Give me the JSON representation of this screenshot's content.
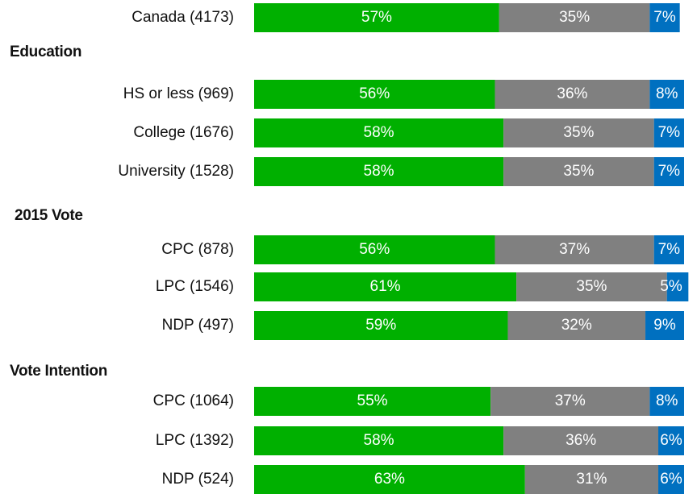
{
  "chart_data": {
    "type": "bar",
    "orientation": "horizontal",
    "stacked": true,
    "colors": [
      "#00b000",
      "#808080",
      "#0070c0"
    ],
    "xlim": [
      0,
      100
    ],
    "groups": [
      {
        "categories": [
          "Canada (4173)"
        ],
        "series": [
          {
            "values": [
              57
            ],
            "value_labels": [
              "57%"
            ]
          },
          {
            "values": [
              35
            ],
            "value_labels": [
              "35%"
            ]
          },
          {
            "values": [
              7
            ],
            "value_labels": [
              "7%"
            ]
          }
        ]
      },
      {
        "title": "Education",
        "categories": [
          "HS or less (969)",
          "College (1676)",
          "University (1528)"
        ],
        "series": [
          {
            "values": [
              56,
              58,
              58
            ],
            "value_labels": [
              "56%",
              "58%",
              "58%"
            ]
          },
          {
            "values": [
              36,
              35,
              35
            ],
            "value_labels": [
              "36%",
              "35%",
              "35%"
            ]
          },
          {
            "values": [
              8,
              7,
              7
            ],
            "value_labels": [
              "8%",
              "7%",
              "7%"
            ]
          }
        ]
      },
      {
        "title": "2015 Vote",
        "categories": [
          "CPC (878)",
          "LPC (1546)",
          "NDP (497)"
        ],
        "series": [
          {
            "values": [
              56,
              61,
              59
            ],
            "value_labels": [
              "56%",
              "61%",
              "59%"
            ]
          },
          {
            "values": [
              37,
              35,
              32
            ],
            "value_labels": [
              "37%",
              "35%",
              "32%"
            ]
          },
          {
            "values": [
              7,
              5,
              9
            ],
            "value_labels": [
              "7%",
              "5%",
              "9%"
            ]
          }
        ]
      },
      {
        "title": "Vote Intention",
        "categories": [
          "CPC (1064)",
          "LPC (1392)",
          "NDP (524)"
        ],
        "series": [
          {
            "values": [
              55,
              58,
              63
            ],
            "value_labels": [
              "55%",
              "58%",
              "63%"
            ]
          },
          {
            "values": [
              37,
              36,
              31
            ],
            "value_labels": [
              "37%",
              "36%",
              "31%"
            ]
          },
          {
            "values": [
              8,
              6,
              6
            ],
            "value_labels": [
              "8%",
              "6%",
              "6%"
            ]
          }
        ]
      }
    ]
  }
}
